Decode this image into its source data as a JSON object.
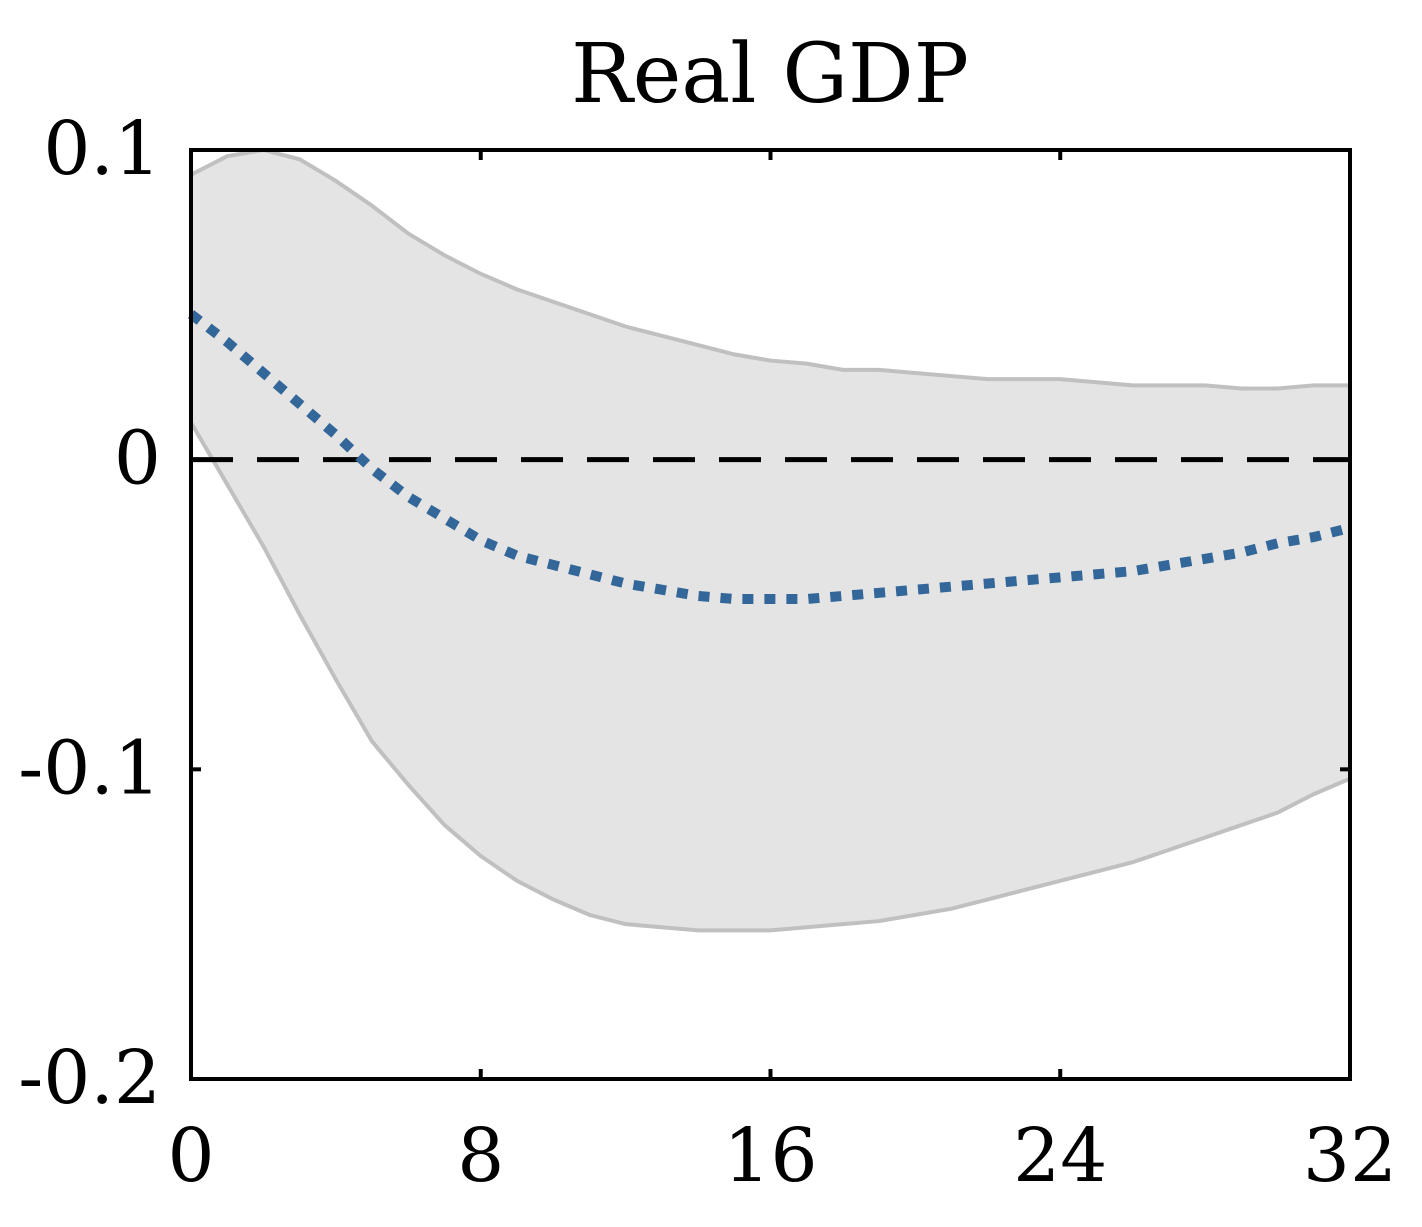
{
  "chart_data": {
    "type": "line",
    "title": "Real GDP",
    "xlabel": "",
    "ylabel": "",
    "xlim": [
      0,
      32
    ],
    "ylim": [
      -0.2,
      0.1
    ],
    "x_ticks": [
      0,
      8,
      16,
      24,
      32
    ],
    "y_ticks": [
      -0.2,
      -0.1,
      0,
      0.1
    ],
    "x_tick_labels": [
      "0",
      "8",
      "16",
      "24",
      "32"
    ],
    "y_tick_labels": [
      "-0.2",
      "-0.1",
      "0",
      "0.1"
    ],
    "grid": false,
    "legend": "none",
    "reference_line": {
      "y": 0,
      "style": "dashed",
      "color": "#000000"
    },
    "x": [
      0,
      1,
      2,
      3,
      4,
      5,
      6,
      7,
      8,
      9,
      10,
      11,
      12,
      13,
      14,
      15,
      16,
      17,
      18,
      19,
      20,
      21,
      22,
      23,
      24,
      25,
      26,
      27,
      28,
      29,
      30,
      31,
      32
    ],
    "series": [
      {
        "values": [
          0.047,
          0.038,
          0.028,
          0.018,
          0.008,
          -0.003,
          -0.012,
          -0.019,
          -0.026,
          -0.031,
          -0.034,
          -0.037,
          -0.04,
          -0.042,
          -0.044,
          -0.045,
          -0.045,
          -0.045,
          -0.044,
          -0.043,
          -0.042,
          -0.041,
          -0.04,
          -0.039,
          -0.038,
          -0.037,
          -0.036,
          -0.034,
          -0.032,
          -0.03,
          -0.027,
          -0.025,
          -0.022
        ],
        "color": "#336699",
        "style": "dotted"
      }
    ],
    "band": {
      "upper": [
        0.092,
        0.098,
        0.1,
        0.097,
        0.09,
        0.082,
        0.073,
        0.066,
        0.06,
        0.055,
        0.051,
        0.047,
        0.043,
        0.04,
        0.037,
        0.034,
        0.032,
        0.031,
        0.029,
        0.029,
        0.028,
        0.027,
        0.026,
        0.026,
        0.026,
        0.025,
        0.024,
        0.024,
        0.024,
        0.023,
        0.023,
        0.024,
        0.024
      ],
      "lower": [
        0.012,
        -0.008,
        -0.028,
        -0.05,
        -0.071,
        -0.091,
        -0.105,
        -0.118,
        -0.128,
        -0.136,
        -0.142,
        -0.147,
        -0.15,
        -0.151,
        -0.152,
        -0.152,
        -0.152,
        -0.151,
        -0.15,
        -0.149,
        -0.147,
        -0.145,
        -0.142,
        -0.139,
        -0.136,
        -0.133,
        -0.13,
        -0.126,
        -0.122,
        -0.118,
        -0.114,
        -0.108,
        -0.103
      ],
      "fill": "#e4e4e4",
      "edge": "#c0c0c0"
    },
    "colors": {
      "axis": "#000000",
      "background": "#ffffff"
    }
  }
}
